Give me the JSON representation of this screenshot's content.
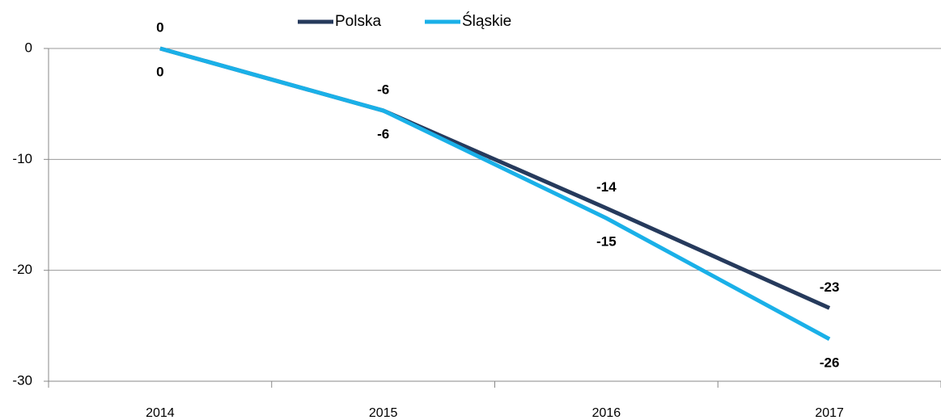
{
  "chart_data": {
    "type": "line",
    "categories": [
      "2014",
      "2015",
      "2016",
      "2017"
    ],
    "series": [
      {
        "name": "Polska",
        "color": "#263a5c",
        "values": [
          0,
          -5.6,
          -14.4,
          -23.4
        ],
        "value_labels": [
          "0",
          "-6",
          "-14",
          "-23"
        ]
      },
      {
        "name": "Śląskie",
        "color": "#1ab0e8",
        "values": [
          0,
          -5.6,
          -15.3,
          -26.2
        ],
        "value_labels": [
          "0",
          "-6",
          "-15",
          "-26"
        ]
      }
    ],
    "ylim": [
      -30,
      0
    ],
    "yticks": [
      -30,
      -20,
      -10,
      0
    ],
    "grid": true,
    "legend": "top"
  }
}
